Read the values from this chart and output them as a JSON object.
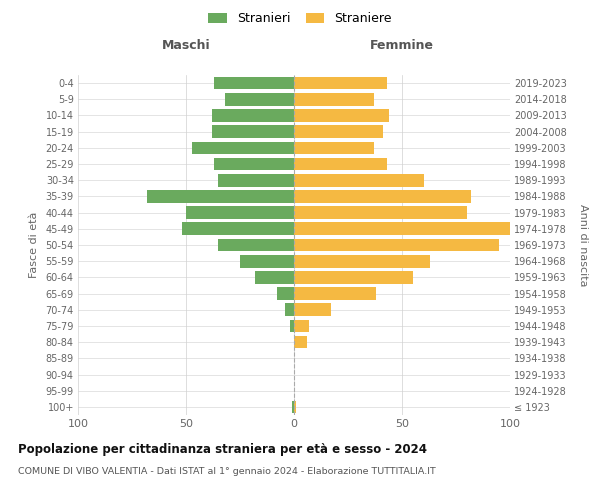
{
  "age_groups": [
    "100+",
    "95-99",
    "90-94",
    "85-89",
    "80-84",
    "75-79",
    "70-74",
    "65-69",
    "60-64",
    "55-59",
    "50-54",
    "45-49",
    "40-44",
    "35-39",
    "30-34",
    "25-29",
    "20-24",
    "15-19",
    "10-14",
    "5-9",
    "0-4"
  ],
  "birth_years": [
    "≤ 1923",
    "1924-1928",
    "1929-1933",
    "1934-1938",
    "1939-1943",
    "1944-1948",
    "1949-1953",
    "1954-1958",
    "1959-1963",
    "1964-1968",
    "1969-1973",
    "1974-1978",
    "1979-1983",
    "1984-1988",
    "1989-1993",
    "1994-1998",
    "1999-2003",
    "2004-2008",
    "2009-2013",
    "2014-2018",
    "2019-2023"
  ],
  "maschi": [
    1,
    0,
    0,
    0,
    0,
    2,
    4,
    8,
    18,
    25,
    35,
    52,
    50,
    68,
    35,
    37,
    47,
    38,
    38,
    32,
    37
  ],
  "femmine": [
    1,
    0,
    0,
    0,
    6,
    7,
    17,
    38,
    55,
    63,
    95,
    100,
    80,
    82,
    60,
    43,
    37,
    41,
    44,
    37,
    43
  ],
  "color_maschi": "#6aaa5e",
  "color_femmine": "#f5b942",
  "title": "Popolazione per cittadinanza straniera per età e sesso - 2024",
  "subtitle": "COMUNE DI VIBO VALENTIA - Dati ISTAT al 1° gennaio 2024 - Elaborazione TUTTITALIA.IT",
  "xlabel_left": "Maschi",
  "xlabel_right": "Femmine",
  "ylabel_left": "Fasce di età",
  "ylabel_right": "Anni di nascita",
  "legend_maschi": "Stranieri",
  "legend_femmine": "Straniere",
  "xlim": 100,
  "background_color": "#ffffff",
  "grid_color": "#d0d0d0"
}
